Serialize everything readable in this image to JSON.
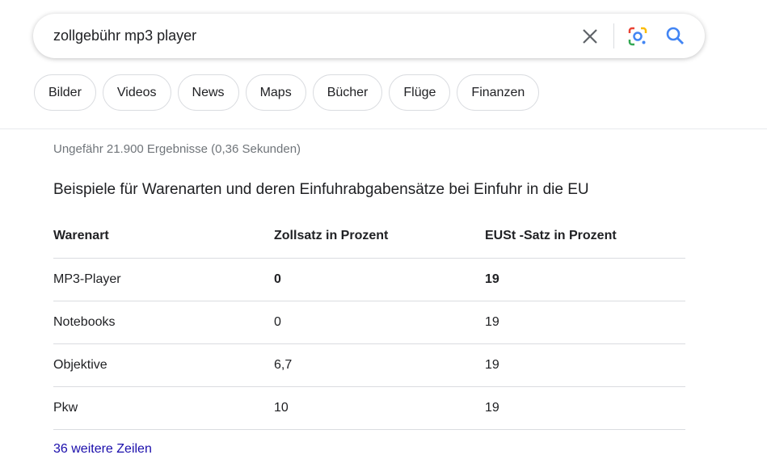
{
  "search": {
    "query": "zollgebühr mp3 player"
  },
  "chips": [
    "Bilder",
    "Videos",
    "News",
    "Maps",
    "Bücher",
    "Flüge",
    "Finanzen"
  ],
  "stats": "Ungefähr 21.900 Ergebnisse (0,36 Sekunden)",
  "heading": "Beispiele für Warenarten und deren Einfuhrabgabensätze bei Einfuhr in die EU",
  "table": {
    "header": [
      "Warenart",
      "Zollsatz in Prozent",
      "EUSt -Satz in Prozent"
    ],
    "rows": [
      [
        "MP3-Player",
        "0",
        "19"
      ],
      [
        "Notebooks",
        "0",
        "19"
      ],
      [
        "Objektive",
        "6,7",
        "19"
      ],
      [
        "Pkw",
        "10",
        "19"
      ]
    ]
  },
  "more": "36 weitere Zeilen"
}
